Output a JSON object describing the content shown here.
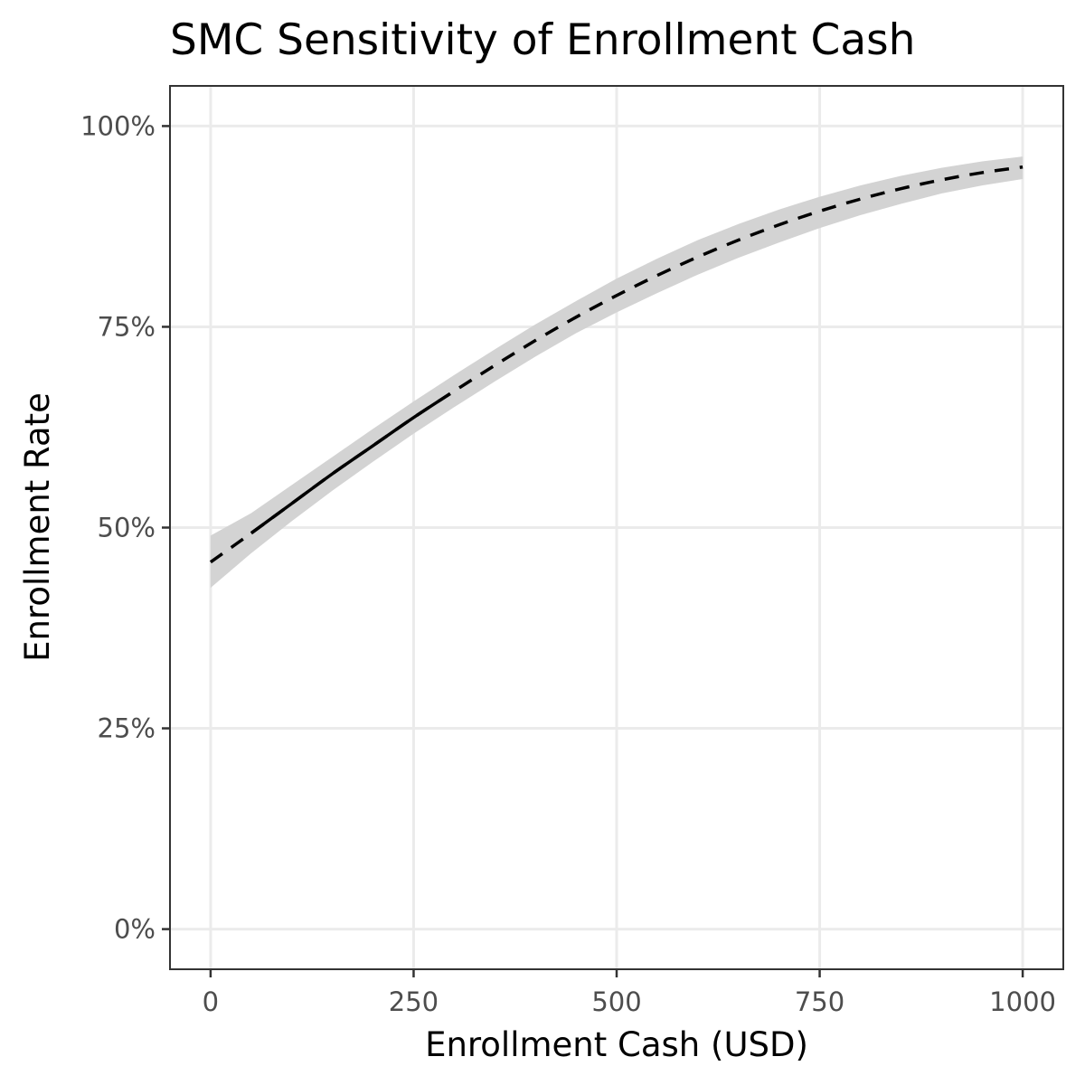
{
  "chart_data": {
    "type": "line",
    "title": "SMC Sensitivity of Enrollment Cash",
    "xlabel": "Enrollment Cash (USD)",
    "ylabel": "Enrollment Rate",
    "xlim": [
      -50,
      1050
    ],
    "ylim": [
      -0.05,
      1.05
    ],
    "x_ticks": [
      0,
      250,
      500,
      750,
      1000
    ],
    "x_tick_labels": [
      "0",
      "250",
      "500",
      "750",
      "1000"
    ],
    "y_ticks": [
      0,
      0.25,
      0.5,
      0.75,
      1.0
    ],
    "y_tick_labels": [
      "0%",
      "25%",
      "50%",
      "75%",
      "100%"
    ],
    "grid": true,
    "legend": "none",
    "series": [
      {
        "style": "solid-within-data-dashed-extrapolation",
        "color": "#000000",
        "band_color": "#d3d3d3",
        "solid_range": [
          50,
          295
        ],
        "x": [
          0,
          50,
          100,
          150,
          200,
          250,
          300,
          350,
          400,
          450,
          500,
          550,
          600,
          650,
          700,
          750,
          800,
          850,
          900,
          950,
          1000
        ],
        "y": [
          0.457,
          0.493,
          0.53,
          0.567,
          0.602,
          0.637,
          0.67,
          0.702,
          0.733,
          0.762,
          0.789,
          0.814,
          0.837,
          0.858,
          0.877,
          0.894,
          0.909,
          0.922,
          0.933,
          0.942,
          0.949
        ],
        "lower": [
          0.425,
          0.468,
          0.508,
          0.546,
          0.582,
          0.617,
          0.65,
          0.682,
          0.713,
          0.742,
          0.768,
          0.792,
          0.815,
          0.836,
          0.855,
          0.873,
          0.889,
          0.903,
          0.916,
          0.926,
          0.934
        ],
        "upper": [
          0.49,
          0.518,
          0.553,
          0.588,
          0.623,
          0.657,
          0.69,
          0.722,
          0.753,
          0.782,
          0.81,
          0.835,
          0.858,
          0.878,
          0.896,
          0.912,
          0.926,
          0.938,
          0.948,
          0.956,
          0.962
        ]
      }
    ]
  }
}
